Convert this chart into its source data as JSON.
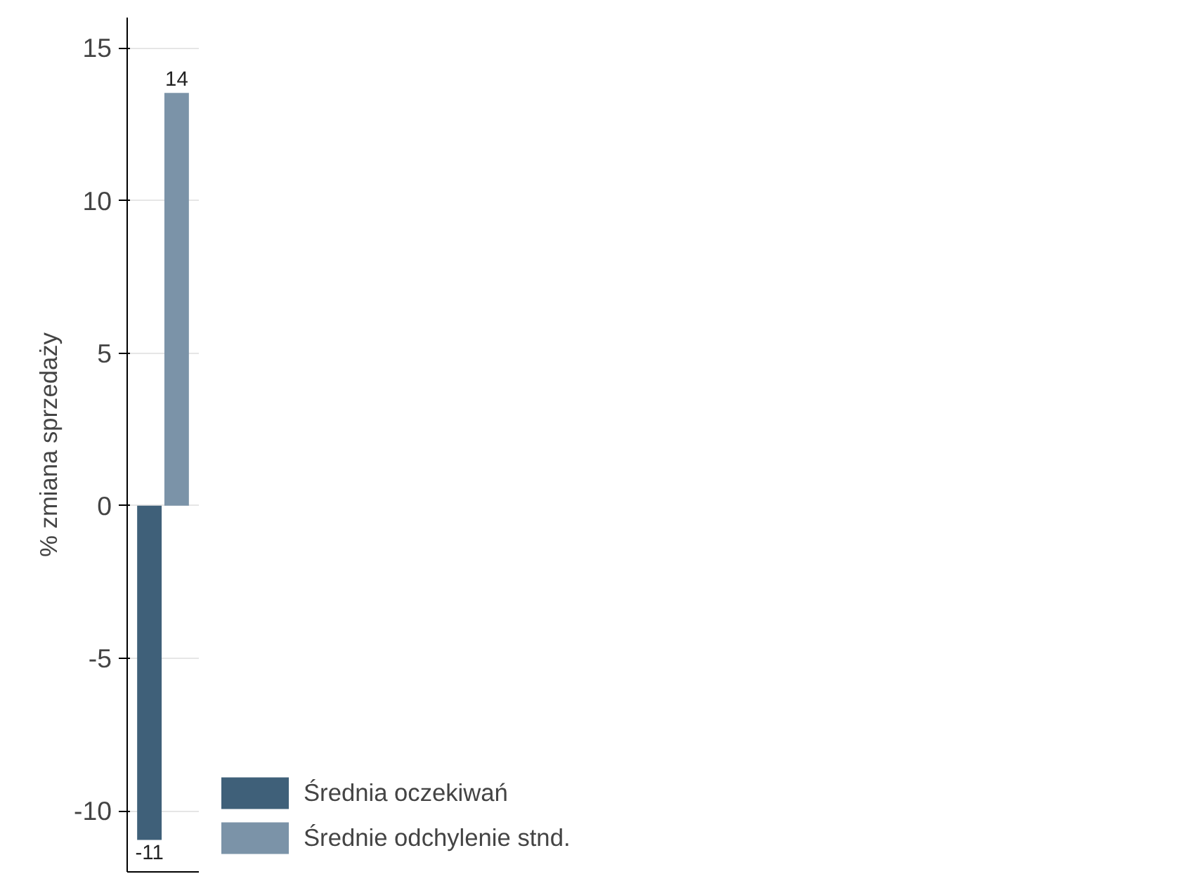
{
  "chart_data": {
    "type": "bar",
    "ylabel": "% zmiana sprzedaży",
    "categories": [
      null
    ],
    "series": [
      {
        "name": "Średnia oczekiwań",
        "color": "#3f6079",
        "values": [
          -10.95
        ],
        "value_labels": [
          "-11"
        ]
      },
      {
        "name": "Średnie odchylenie stnd.",
        "color": "#7b93a8",
        "values": [
          13.53
        ],
        "value_labels": [
          "14"
        ]
      }
    ],
    "ylim": [
      -12,
      16
    ],
    "yticks": [
      -10,
      -5,
      0,
      5,
      10,
      15
    ],
    "grid": "y",
    "legend": "bottom right",
    "tick_labels": "y"
  }
}
